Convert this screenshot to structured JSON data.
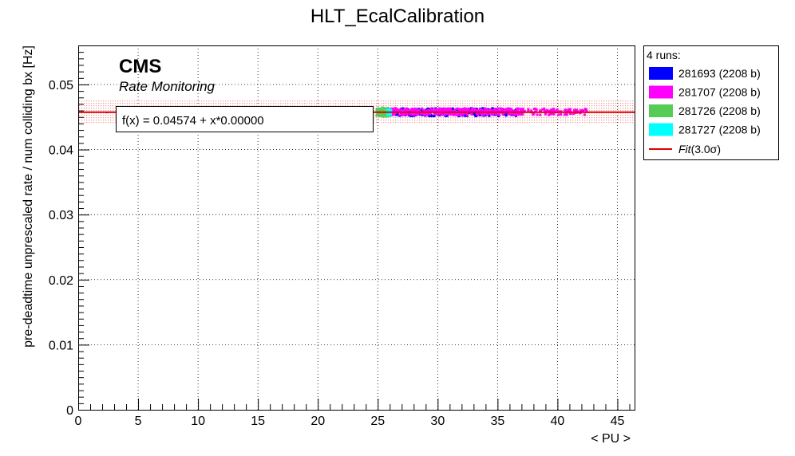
{
  "chart_data": {
    "type": "scatter",
    "title": "HLT_EcalCalibration",
    "xlabel": "< PU >",
    "ylabel": "pre-deadtime unprescaled rate / num colliding bx [Hz]",
    "xlim": [
      0,
      46.5
    ],
    "ylim": [
      0,
      0.056
    ],
    "xticks": [
      "0",
      "5",
      "10",
      "15",
      "20",
      "25",
      "30",
      "35",
      "40",
      "45"
    ],
    "yticks": [
      "0",
      "0.01",
      "0.02",
      "0.03",
      "0.04",
      "0.05"
    ],
    "grid": true,
    "legend_position": "outside-right",
    "cms_label": "CMS",
    "cms_sublabel": "Rate Monitoring",
    "fit": {
      "label": "f(x) = 0.04574 + x*0.00000",
      "intercept": 0.04574,
      "slope": 0.0,
      "band_sigma": 3.0,
      "band_halfwidth": 0.0018,
      "color": "#e00000",
      "band_color": "#f29a9a"
    },
    "legend": {
      "header": "4 runs:",
      "fit_label": "Fit(3.0σ)",
      "fit_label_main": "Fit",
      "fit_label_arg": "(3.0σ)"
    },
    "series": [
      {
        "name": "281693 (2208 b)",
        "color": "#0000ff",
        "pu_range": [
          26.0,
          36.8
        ],
        "rate_mean": 0.04574,
        "rate_spread": 0.0006
      },
      {
        "name": "281707 (2208 b)",
        "color": "#ff00ff",
        "pu_range": [
          26.0,
          42.5
        ],
        "rate_mean": 0.04582,
        "rate_spread": 0.0005
      },
      {
        "name": "281726 (2208 b)",
        "color": "#55cc55",
        "pu_range": [
          24.9,
          26.0
        ],
        "rate_mean": 0.04574,
        "rate_spread": 0.0007
      },
      {
        "name": "281727 (2208 b)",
        "color": "#00ffff",
        "pu_range": [
          25.8,
          26.1
        ],
        "rate_mean": 0.04574,
        "rate_spread": 0.0004
      }
    ],
    "outlier_points": [
      {
        "x": 2.4,
        "y": 0.0457
      }
    ]
  }
}
